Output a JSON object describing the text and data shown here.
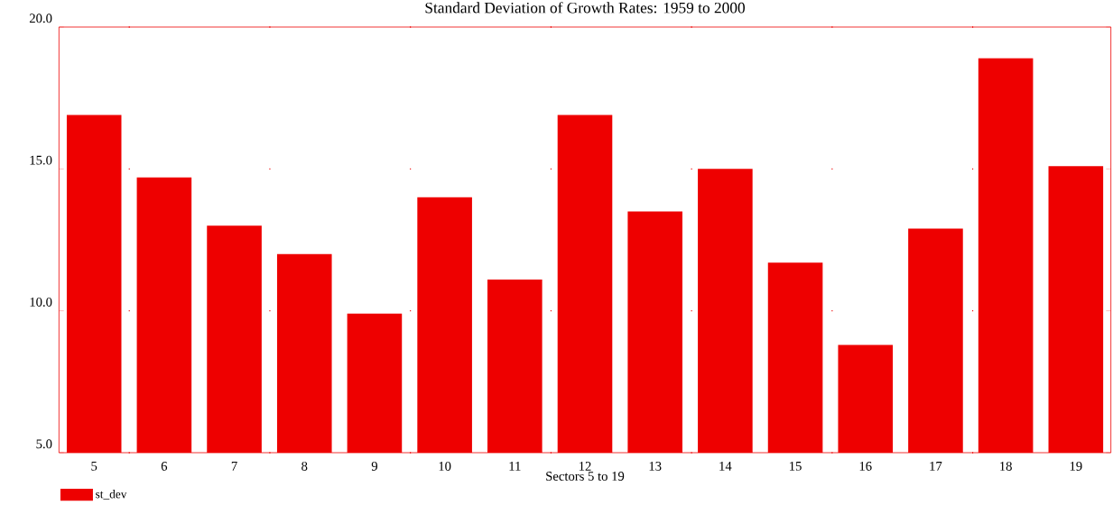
{
  "chart_data": {
    "type": "bar",
    "title": "Standard Deviation of Growth Rates: 1959 to 2000",
    "xlabel": "Sectors 5 to 19",
    "categories": [
      "5",
      "6",
      "7",
      "8",
      "9",
      "10",
      "11",
      "12",
      "13",
      "14",
      "15",
      "16",
      "17",
      "18",
      "19"
    ],
    "series": [
      {
        "name": "st_dev",
        "color": "#ee0000",
        "values": [
          16.9,
          14.7,
          13.0,
          12.0,
          9.9,
          14.0,
          11.1,
          16.9,
          13.5,
          15.0,
          11.7,
          8.8,
          12.9,
          18.9,
          15.1
        ]
      }
    ],
    "ylim": [
      5,
      20
    ],
    "yticks": [
      {
        "value": 5,
        "label": "5.0"
      },
      {
        "value": 10,
        "label": "10.0"
      },
      {
        "value": 15,
        "label": "15.0"
      },
      {
        "value": 20,
        "label": "20.0"
      }
    ],
    "grid": "y",
    "legend": "bottom left"
  }
}
